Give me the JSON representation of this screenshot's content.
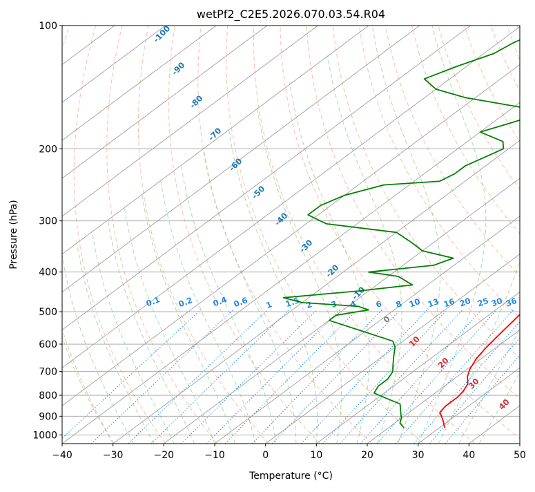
{
  "chart_data": {
    "type": "line",
    "title": "wetPf2_C2E5.2026.070.03.54.R04",
    "xlabel": "Temperature (°C)",
    "ylabel": "Pressure (hPa)",
    "xlim": [
      -40,
      50
    ],
    "ylim": [
      1050,
      100
    ],
    "x_ticks": [
      -40,
      -30,
      -20,
      -10,
      0,
      10,
      20,
      30,
      40,
      50
    ],
    "y_ticks": [
      100,
      200,
      300,
      400,
      500,
      600,
      700,
      800,
      900,
      1000
    ],
    "skew_degrees_per_log_decade": 108,
    "series": [
      {
        "name": "Temperature",
        "color": "#ff0000",
        "points": [
          [
            31,
            960
          ],
          [
            29,
            925
          ],
          [
            26,
            880
          ],
          [
            25.5,
            850
          ],
          [
            25.5,
            810
          ],
          [
            25,
            780
          ],
          [
            24,
            750
          ],
          [
            22,
            720
          ],
          [
            20.5,
            690
          ],
          [
            19,
            650
          ],
          [
            18,
            610
          ],
          [
            17,
            560
          ],
          [
            16,
            510
          ],
          [
            15,
            470
          ],
          [
            14,
            440
          ],
          [
            12,
            410
          ],
          [
            10,
            370
          ],
          [
            8,
            335
          ],
          [
            7,
            310
          ],
          [
            6,
            285
          ],
          [
            3,
            260
          ],
          [
            0,
            235
          ],
          [
            -1.5,
            213
          ],
          [
            -2,
            195
          ],
          [
            -1,
            180
          ],
          [
            -3,
            170
          ],
          [
            -8,
            158
          ],
          [
            -15,
            147
          ],
          [
            -25,
            135
          ],
          [
            -34,
            124
          ],
          [
            -43,
            115
          ],
          [
            -50,
            108
          ],
          [
            -55,
            102
          ]
        ]
      },
      {
        "name": "Dewpoint",
        "color": "#008000",
        "points": [
          [
            23,
            960
          ],
          [
            21,
            935
          ],
          [
            20,
            910
          ],
          [
            18,
            875
          ],
          [
            16,
            840
          ],
          [
            12,
            815
          ],
          [
            8,
            790
          ],
          [
            7,
            760
          ],
          [
            7,
            730
          ],
          [
            6,
            700
          ],
          [
            4,
            670
          ],
          [
            2,
            640
          ],
          [
            0,
            610
          ],
          [
            -2,
            590
          ],
          [
            -10,
            560
          ],
          [
            -20,
            525
          ],
          [
            -20,
            510
          ],
          [
            -15,
            495
          ],
          [
            -18,
            485
          ],
          [
            -30,
            475
          ],
          [
            -35,
            462
          ],
          [
            -22,
            445
          ],
          [
            -13,
            430
          ],
          [
            -18,
            410
          ],
          [
            -25,
            400
          ],
          [
            -14,
            385
          ],
          [
            -12,
            370
          ],
          [
            -20,
            355
          ],
          [
            -24,
            340
          ],
          [
            -30,
            320
          ],
          [
            -46,
            305
          ],
          [
            -52,
            290
          ],
          [
            -52,
            275
          ],
          [
            -50,
            260
          ],
          [
            -45,
            245
          ],
          [
            -35,
            240
          ],
          [
            -34,
            230
          ],
          [
            -34,
            220
          ],
          [
            -31,
            200
          ],
          [
            -33,
            192
          ],
          [
            -40,
            182
          ],
          [
            -36,
            172
          ],
          [
            -33,
            164
          ],
          [
            -39,
            158
          ],
          [
            -52,
            150
          ],
          [
            -60,
            143
          ],
          [
            -65,
            135
          ],
          [
            -62,
            126
          ],
          [
            -58,
            117
          ],
          [
            -57,
            110
          ],
          [
            -55,
            104
          ],
          [
            -54,
            100
          ]
        ]
      }
    ],
    "background_lines": {
      "dry_adiabat_labels": [
        "-100",
        "-90",
        "-80",
        "-70",
        "-60",
        "-50",
        "-40",
        "-30",
        "-20",
        "-10"
      ],
      "mixing_ratio_labels": [
        "0.1",
        "0.2",
        "0.4",
        "0.6",
        "1",
        "1.5",
        "2",
        "3",
        "4",
        "6",
        "8",
        "10",
        "13",
        "16",
        "20",
        "25",
        "30",
        "36"
      ],
      "moist_adiabat_labels": [
        "0",
        "10",
        "20",
        "30",
        "40"
      ]
    }
  }
}
